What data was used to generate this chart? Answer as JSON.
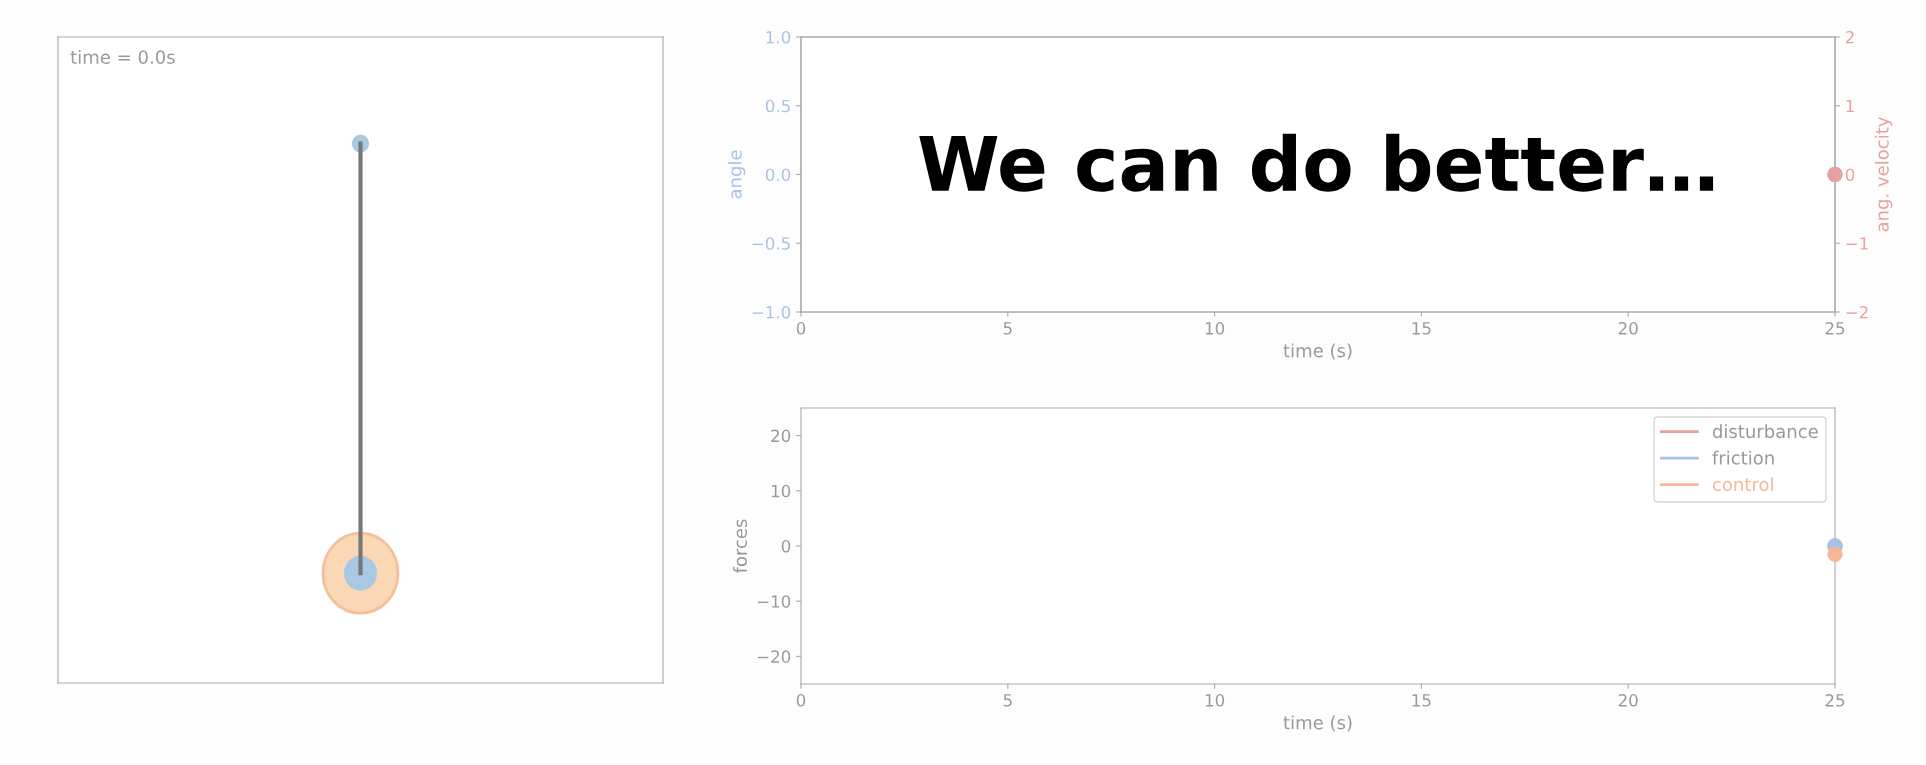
{
  "chart_data": [
    {
      "type": "other",
      "title": "We can do better…",
      "annotations": [
        "time = 0.0s"
      ]
    },
    {
      "type": "line",
      "xlabel": "time (s)",
      "ylabel": "angle",
      "y2label": "ang. velocity",
      "marker": "circle",
      "x": [
        25
      ],
      "xlim": [
        0,
        25
      ],
      "xticks": [
        0,
        5,
        10,
        15,
        20,
        25
      ],
      "ylim": [
        -1,
        1
      ],
      "yticks": [
        {
          "value": -1,
          "label": "−1.0"
        },
        {
          "value": -0.5,
          "label": "−0.5"
        },
        {
          "value": 0,
          "label": "0.0"
        },
        {
          "value": 0.5,
          "label": "0.5"
        },
        {
          "value": 1,
          "label": "1.0"
        }
      ],
      "y2lim": [
        -2,
        2
      ],
      "y2ticks": [
        {
          "value": -2,
          "label": "−2"
        },
        {
          "value": -1,
          "label": "−1"
        },
        0,
        1,
        2
      ],
      "series": [
        {
          "color": "#a9c0e8",
          "values": [
            0
          ]
        },
        {
          "color": "#e8a0a0",
          "axis": "y2",
          "values": [
            0
          ]
        }
      ]
    },
    {
      "type": "line",
      "xlabel": "time (s)",
      "ylabel": "forces",
      "marker": "circle",
      "legend": "top right",
      "x": [
        25
      ],
      "xlim": [
        0,
        25
      ],
      "xticks": [
        0,
        5,
        10,
        15,
        20,
        25
      ],
      "ylim": [
        -25,
        25
      ],
      "yticks": [
        {
          "value": -20,
          "label": "−20"
        },
        {
          "value": -10,
          "label": "−10"
        },
        0,
        10,
        20
      ],
      "series": [
        {
          "name": "disturbance",
          "color": "#e8a0a0",
          "values": [
            0
          ]
        },
        {
          "name": "friction",
          "color": "#a9c0e8",
          "values": [
            0
          ]
        },
        {
          "name": "control",
          "color": "#f4b898",
          "values": [
            -1.5
          ]
        }
      ]
    }
  ]
}
